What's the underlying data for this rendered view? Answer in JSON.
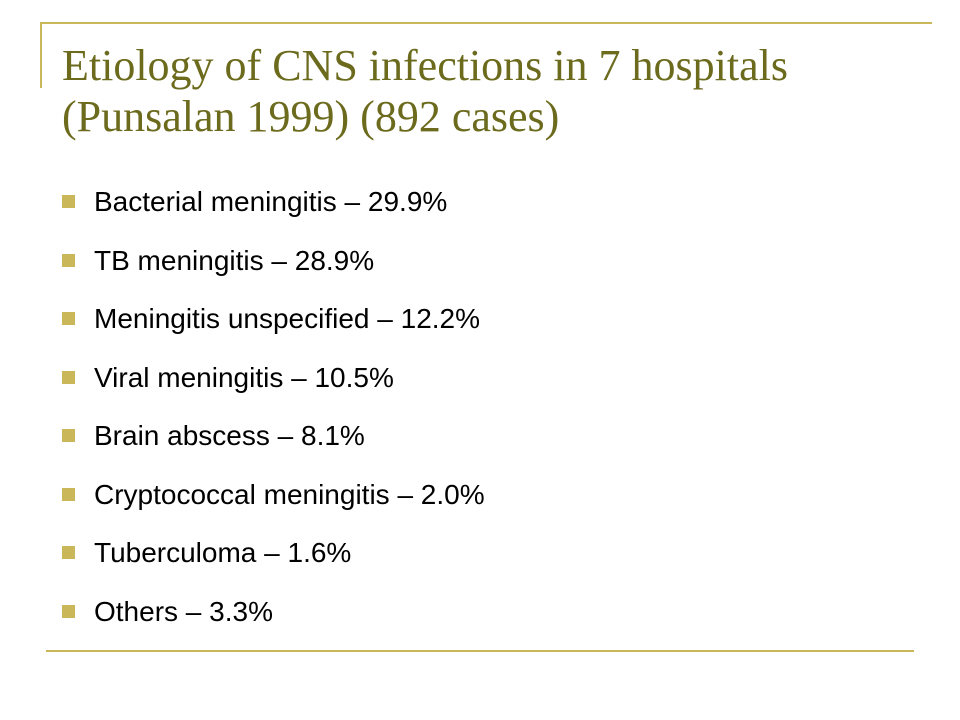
{
  "slide": {
    "title_line1": "Etiology of CNS infections in 7 hospitals",
    "title_line2": "(Punsalan 1999) (892 cases)",
    "accent_color": "#c9b75a",
    "title_color": "#6b6a1d",
    "bullets": [
      "Bacterial meningitis – 29.9%",
      "TB meningitis – 28.9%",
      "Meningitis unspecified – 12.2%",
      "Viral meningitis – 10.5%",
      "Brain abscess – 8.1%",
      "Cryptococcal meningitis – 2.0%",
      "Tuberculoma – 1.6%",
      "Others – 3.3%"
    ]
  }
}
